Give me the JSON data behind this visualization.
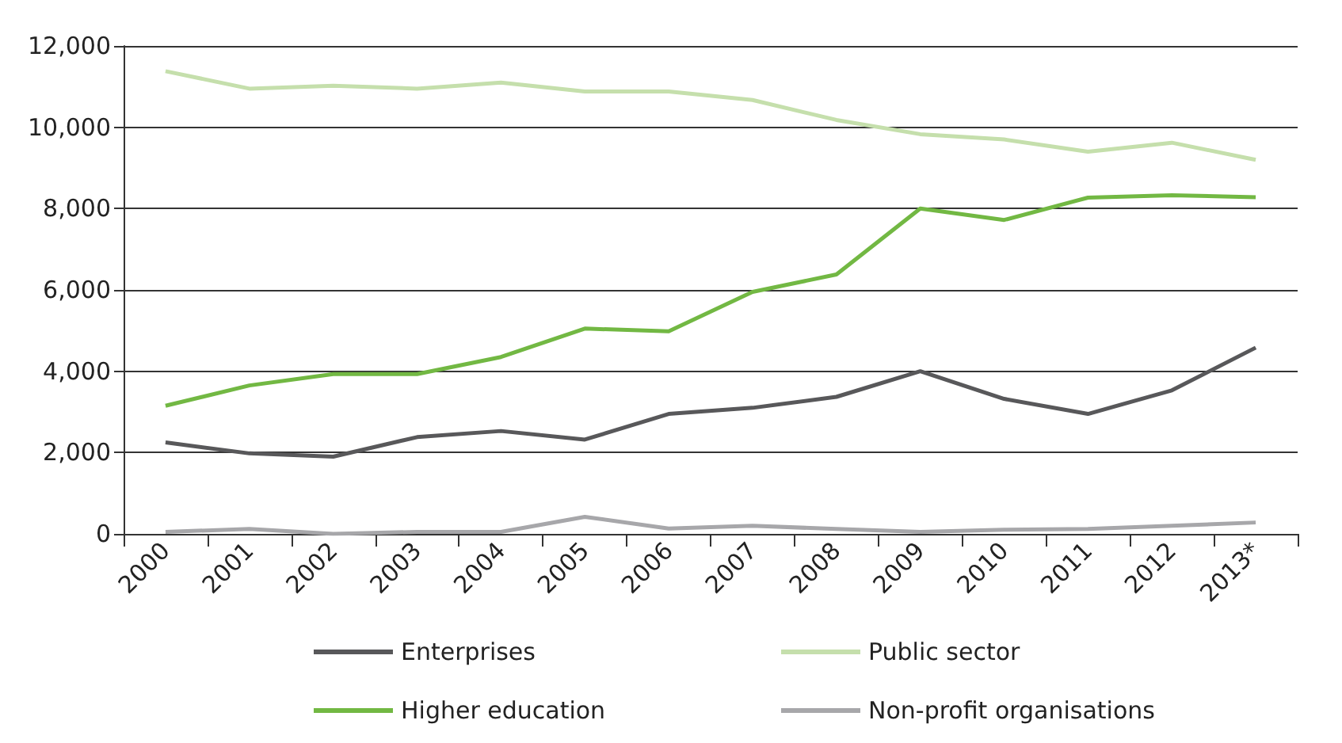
{
  "chart_data": {
    "type": "line",
    "categories": [
      "2000",
      "2001",
      "2002",
      "2003",
      "2004",
      "2005",
      "2006",
      "2007",
      "2008",
      "2009",
      "2010",
      "2011",
      "2012",
      "2013*"
    ],
    "series": [
      {
        "name": "Enterprises",
        "color": "#58585a",
        "values": [
          2250,
          1980,
          1900,
          2380,
          2530,
          2320,
          2950,
          3100,
          3370,
          4000,
          3320,
          2950,
          3530,
          4580
        ]
      },
      {
        "name": "Public sector",
        "color": "#c5dfac",
        "values": [
          11380,
          10950,
          11020,
          10950,
          11100,
          10880,
          10880,
          10670,
          10180,
          9830,
          9700,
          9400,
          9620,
          9200
        ]
      },
      {
        "name": "Higher education",
        "color": "#72b843",
        "values": [
          3150,
          3650,
          3930,
          3930,
          4350,
          5050,
          4980,
          5950,
          6380,
          8000,
          7720,
          8270,
          8330,
          8280
        ]
      },
      {
        "name": "Non-profit organisations",
        "color": "#a7a7aa",
        "values": [
          50,
          120,
          0,
          50,
          50,
          420,
          130,
          200,
          120,
          50,
          100,
          120,
          200,
          280
        ]
      }
    ],
    "ylim": [
      0,
      12000
    ],
    "yticks": [
      0,
      {
        "value": 2000,
        "label": "2,000"
      },
      {
        "value": 4000,
        "label": "4,000"
      },
      {
        "value": 6000,
        "label": "6,000"
      },
      {
        "value": 8000,
        "label": "8,000"
      },
      {
        "value": 10000,
        "label": "10,000"
      },
      {
        "value": 12000,
        "label": "12,000"
      }
    ],
    "grid": "y",
    "legend": "bottom",
    "marker": "none",
    "line_style": "solid"
  }
}
